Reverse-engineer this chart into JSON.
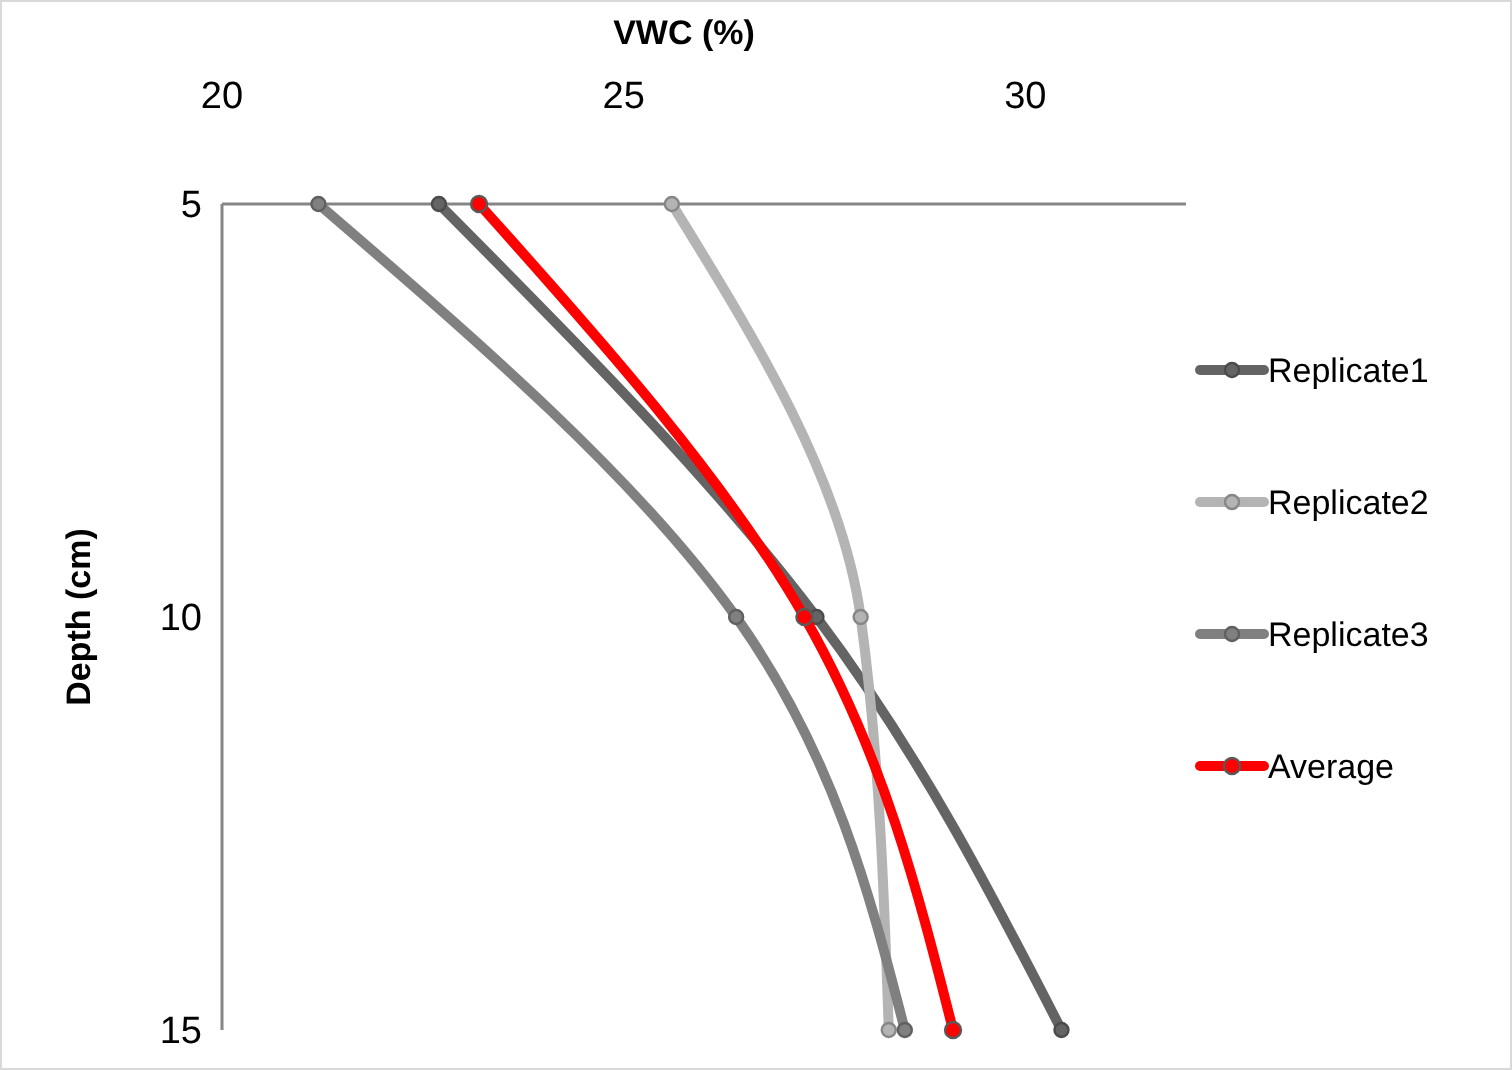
{
  "chart_data": {
    "type": "line",
    "xlabel": "VWC (%)",
    "ylabel": "Depth (cm)",
    "x": [
      5,
      10,
      15
    ],
    "series": [
      {
        "name": "Replicate1",
        "color": "#646464",
        "values": [
          22.7,
          27.4,
          30.45
        ]
      },
      {
        "name": "Replicate2",
        "color": "#b4b4b4",
        "values": [
          25.6,
          27.95,
          28.3
        ]
      },
      {
        "name": "Replicate3",
        "color": "#808080",
        "values": [
          21.2,
          26.4,
          28.5
        ]
      },
      {
        "name": "Average",
        "color": "#ff0000",
        "values": [
          23.2,
          27.25,
          29.1
        ]
      }
    ],
    "xlim": [
      20,
      32
    ],
    "xticks": [
      20,
      25,
      30
    ],
    "ylim": [
      15,
      5
    ],
    "yticks": [
      5,
      10,
      15
    ],
    "orientation": "horizontal",
    "grid": false,
    "legend": "right",
    "marker": "circle",
    "line_style": "solid"
  }
}
